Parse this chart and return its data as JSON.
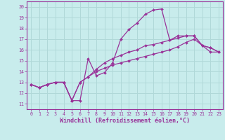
{
  "title": "",
  "xlabel": "Windchill (Refroidissement éolien,°C)",
  "ylabel": "",
  "bg_color": "#c8ecec",
  "grid_color": "#b0d8d8",
  "line_color": "#993399",
  "marker": "D",
  "markersize": 2.0,
  "linewidth": 0.9,
  "xlim": [
    -0.5,
    23.5
  ],
  "ylim": [
    10.5,
    20.5
  ],
  "yticks": [
    11,
    12,
    13,
    14,
    15,
    16,
    17,
    18,
    19,
    20
  ],
  "xticks": [
    0,
    1,
    2,
    3,
    4,
    5,
    6,
    7,
    8,
    9,
    10,
    11,
    12,
    13,
    14,
    15,
    16,
    17,
    18,
    19,
    20,
    21,
    22,
    23
  ],
  "tick_fontsize": 4.8,
  "xlabel_fontsize": 6.0,
  "lines": [
    [
      12.8,
      12.5,
      12.8,
      13.0,
      13.0,
      11.3,
      11.3,
      15.2,
      13.6,
      13.9,
      14.8,
      17.0,
      17.9,
      18.5,
      19.3,
      19.7,
      19.8,
      16.9,
      17.3,
      17.3,
      17.3,
      16.4,
      16.2,
      15.8
    ],
    [
      12.8,
      12.5,
      12.8,
      13.0,
      13.0,
      11.3,
      13.0,
      13.5,
      14.2,
      14.8,
      15.2,
      15.5,
      15.8,
      16.0,
      16.4,
      16.5,
      16.7,
      16.9,
      17.1,
      17.3,
      17.3,
      16.4,
      16.2,
      15.8
    ],
    [
      12.8,
      12.5,
      12.8,
      13.0,
      13.0,
      11.3,
      13.0,
      13.5,
      14.0,
      14.3,
      14.6,
      14.8,
      15.0,
      15.2,
      15.4,
      15.6,
      15.8,
      16.0,
      16.3,
      16.7,
      17.0,
      16.4,
      15.8,
      15.8
    ]
  ]
}
